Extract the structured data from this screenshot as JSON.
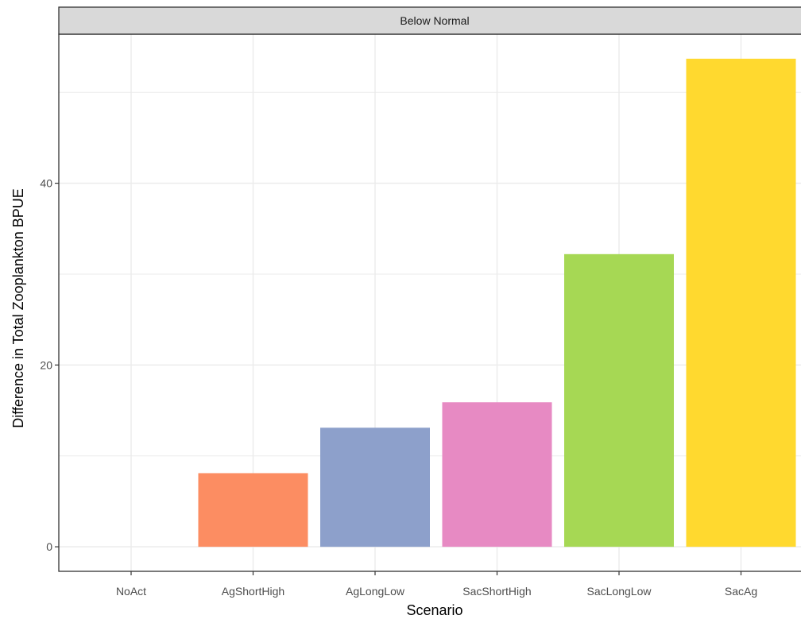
{
  "chart_data": {
    "type": "bar",
    "facet_label": "Below Normal",
    "xlabel": "Scenario",
    "ylabel": "Difference in Total Zooplankton BPUE",
    "categories": [
      "NoAct",
      "AgShortHigh",
      "AgLongLow",
      "SacShortHigh",
      "SacLongLow",
      "SacAg"
    ],
    "values": [
      0,
      8.1,
      13.1,
      15.9,
      32.2,
      53.7
    ],
    "colors": [
      "#66c2a5",
      "#fc8d62",
      "#8da0cb",
      "#e78ac3",
      "#a6d854",
      "#ffd92f"
    ],
    "yticks": [
      0,
      20,
      40
    ],
    "yminor": [
      10,
      30,
      50
    ],
    "ylim": [
      -2.7,
      56.4
    ],
    "grid": true
  }
}
